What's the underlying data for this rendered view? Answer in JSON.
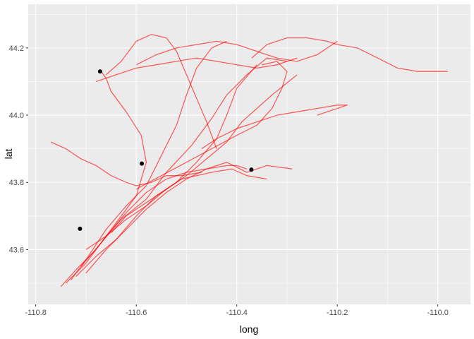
{
  "chart_data": {
    "type": "line",
    "title": "",
    "xlabel": "long",
    "ylabel": "lat",
    "xlim": [
      -110.815,
      -109.935
    ],
    "ylim": [
      43.437,
      44.33
    ],
    "x_ticks": [
      -110.8,
      -110.6,
      -110.4,
      -110.2,
      -110.0
    ],
    "x_tick_labels": [
      "-110.8",
      "-110.6",
      "-110.4",
      "-110.2",
      "-110.0"
    ],
    "y_ticks": [
      43.6,
      43.8,
      44.0,
      44.2
    ],
    "y_tick_labels": [
      "43.6",
      "43.8",
      "44.0",
      "44.2"
    ],
    "grid": true,
    "legend": "none",
    "colors": {
      "track": "#ff0000",
      "point": "#000000",
      "panel": "#ebebeb",
      "grid": "#ffffff"
    },
    "series": [
      {
        "x": [
          -110.74,
          -110.7,
          -110.66,
          -110.62,
          -110.58,
          -110.54,
          -110.5,
          -110.46,
          -110.42,
          -110.4,
          -110.38
        ],
        "y": [
          43.5,
          43.56,
          43.64,
          43.71,
          43.77,
          43.81,
          43.83,
          43.84,
          43.85,
          43.85,
          43.84
        ]
      },
      {
        "x": [
          -110.75,
          -110.72,
          -110.68,
          -110.64,
          -110.6,
          -110.58,
          -110.59,
          -110.62,
          -110.65,
          -110.66,
          -110.67
        ],
        "y": [
          43.49,
          43.54,
          43.6,
          43.68,
          43.76,
          43.86,
          43.94,
          44.01,
          44.07,
          44.11,
          44.13
        ]
      },
      {
        "x": [
          -110.72,
          -110.68,
          -110.64,
          -110.6,
          -110.56,
          -110.52,
          -110.48,
          -110.44,
          -110.42,
          -110.4,
          -110.36
        ],
        "y": [
          43.52,
          43.58,
          43.63,
          43.7,
          43.76,
          43.8,
          43.86,
          43.93,
          44.0,
          44.08,
          44.15
        ]
      },
      {
        "x": [
          -110.71,
          -110.67,
          -110.63,
          -110.58,
          -110.54,
          -110.49,
          -110.45,
          -110.42,
          -110.38,
          -110.34,
          -110.3
        ],
        "y": [
          43.55,
          43.62,
          43.69,
          43.75,
          43.83,
          43.91,
          43.99,
          44.06,
          44.12,
          44.17,
          44.16
        ]
      },
      {
        "x": [
          -110.73,
          -110.7,
          -110.66,
          -110.62,
          -110.58,
          -110.55,
          -110.52,
          -110.5,
          -110.48,
          -110.45,
          -110.42
        ],
        "y": [
          43.51,
          43.57,
          43.66,
          43.73,
          43.79,
          43.88,
          43.97,
          44.06,
          44.14,
          44.2,
          44.22
        ]
      },
      {
        "x": [
          -110.7,
          -110.66,
          -110.62,
          -110.58,
          -110.54,
          -110.5,
          -110.46,
          -110.42,
          -110.38,
          -110.34,
          -110.29
        ],
        "y": [
          43.53,
          43.6,
          43.66,
          43.72,
          43.77,
          43.81,
          43.84,
          43.86,
          43.83,
          43.85,
          43.84
        ]
      },
      {
        "x": [
          -110.6,
          -110.56,
          -110.52,
          -110.48,
          -110.44,
          -110.4,
          -110.36,
          -110.32,
          -110.28,
          -110.24,
          -110.2
        ],
        "y": [
          44.15,
          44.18,
          44.2,
          44.21,
          44.22,
          44.21,
          44.19,
          44.17,
          44.16,
          44.18,
          44.22
        ]
      },
      {
        "x": [
          -110.66,
          -110.63,
          -110.6,
          -110.57,
          -110.54,
          -110.52,
          -110.5,
          -110.48,
          -110.46,
          -110.45,
          -110.44
        ],
        "y": [
          44.12,
          44.16,
          44.22,
          44.24,
          44.23,
          44.19,
          44.12,
          44.05,
          43.98,
          43.94,
          43.9
        ]
      },
      {
        "x": [
          -110.37,
          -110.34,
          -110.3,
          -110.26,
          -110.22,
          -110.2,
          -110.16,
          -110.12,
          -110.08,
          -110.04,
          -109.98
        ],
        "y": [
          44.17,
          44.21,
          44.23,
          44.23,
          44.22,
          44.21,
          44.2,
          44.17,
          44.14,
          44.13,
          44.13
        ]
      },
      {
        "x": [
          -110.6,
          -110.55,
          -110.5,
          -110.45,
          -110.4,
          -110.36,
          -110.33,
          -110.31,
          -110.3,
          -110.32,
          -110.35
        ],
        "y": [
          43.78,
          43.82,
          43.86,
          43.9,
          43.94,
          43.97,
          44.02,
          44.08,
          44.13,
          44.16,
          44.15
        ]
      },
      {
        "x": [
          -110.77,
          -110.74,
          -110.71,
          -110.68,
          -110.65,
          -110.62,
          -110.6,
          -110.57,
          -110.54,
          -110.51,
          -110.47
        ],
        "y": [
          43.92,
          43.9,
          43.87,
          43.85,
          43.82,
          43.8,
          43.79,
          43.8,
          43.82,
          43.82,
          43.83
        ]
      },
      {
        "x": [
          -110.65,
          -110.62,
          -110.58,
          -110.54,
          -110.5,
          -110.46,
          -110.42,
          -110.39,
          -110.36,
          -110.33,
          -110.28
        ],
        "y": [
          43.65,
          43.7,
          43.74,
          43.78,
          43.82,
          43.87,
          43.92,
          43.98,
          44.02,
          44.06,
          44.12
        ]
      },
      {
        "x": [
          -110.68,
          -110.64,
          -110.6,
          -110.56,
          -110.52,
          -110.48,
          -110.44,
          -110.4,
          -110.36,
          -110.32,
          -110.28
        ],
        "y": [
          44.1,
          44.12,
          44.14,
          44.15,
          44.16,
          44.17,
          44.16,
          44.15,
          44.14,
          44.15,
          44.17
        ]
      },
      {
        "x": [
          -110.7,
          -110.66,
          -110.62,
          -110.58,
          -110.54,
          -110.51,
          -110.48,
          -110.45,
          -110.41,
          -110.38,
          -110.34
        ],
        "y": [
          43.6,
          43.64,
          43.69,
          43.73,
          43.78,
          43.81,
          43.82,
          43.83,
          43.84,
          43.82,
          43.81
        ]
      },
      {
        "x": [
          -110.47,
          -110.44,
          -110.4,
          -110.36,
          -110.32,
          -110.28,
          -110.24,
          -110.2,
          -110.18,
          -110.2,
          -110.24
        ],
        "y": [
          43.9,
          43.93,
          43.96,
          43.98,
          44.0,
          44.01,
          44.02,
          44.03,
          44.03,
          44.02,
          44.0
        ]
      }
    ],
    "points": [
      {
        "x": -110.672,
        "y": 44.13
      },
      {
        "x": -110.589,
        "y": 43.856
      },
      {
        "x": -110.371,
        "y": 43.838
      },
      {
        "x": -110.712,
        "y": 43.662
      }
    ]
  }
}
